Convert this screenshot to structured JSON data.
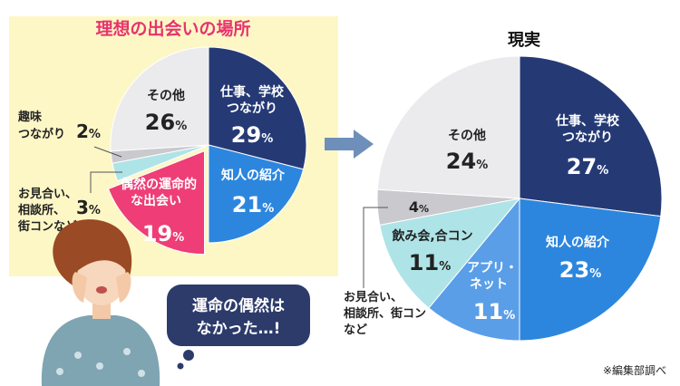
{
  "chart_data": [
    {
      "type": "pie",
      "title": "理想の出会いの場所",
      "categories": [
        "仕事、学校つながり",
        "知人の紹介",
        "偶然の運命的な出会い",
        "お見合い、相談所、街コンなど",
        "趣味つながり",
        "その他"
      ],
      "values": [
        29,
        21,
        19,
        3,
        2,
        26
      ],
      "unit": "%",
      "colors": [
        "#253a75",
        "#2d86dd",
        "#ee3d77",
        "#aee4e7",
        "#c9c9ce",
        "#ebebee"
      ]
    },
    {
      "type": "pie",
      "title": "現実",
      "categories": [
        "仕事、学校つながり",
        "知人の紹介",
        "アプリ・ネット",
        "飲み会,合コン",
        "お見合い、相談所、街コンなど",
        "その他"
      ],
      "values": [
        27,
        23,
        11,
        11,
        4,
        24
      ],
      "unit": "%",
      "colors": [
        "#253a75",
        "#2d86dd",
        "#5a9ee8",
        "#aee4e7",
        "#c9c9ce",
        "#ebebee"
      ]
    }
  ],
  "labels": {
    "ideal": [
      {
        "lines": [
          "仕事、学校",
          "つながり"
        ],
        "value": "29"
      },
      {
        "lines": [
          "知人の紹介"
        ],
        "value": "21"
      },
      {
        "lines": [
          "偶然の運命的",
          "な出会い"
        ],
        "value": "19"
      },
      {
        "lines": [
          "お見合い、",
          "相談所、",
          "街コンなど"
        ],
        "value": "3"
      },
      {
        "lines": [
          "趣味",
          "つながり"
        ],
        "value": "2"
      },
      {
        "lines": [
          "その他"
        ],
        "value": "26"
      }
    ],
    "real": [
      {
        "lines": [
          "仕事、学校",
          "つながり"
        ],
        "value": "27"
      },
      {
        "lines": [
          "知人の紹介"
        ],
        "value": "23"
      },
      {
        "lines": [
          "アプリ・",
          "ネット"
        ],
        "value": "11"
      },
      {
        "lines": [
          "飲み会,合コン"
        ],
        "value": "11"
      },
      {
        "lines": [
          "お見合い、",
          "相談所、街コン",
          "など"
        ],
        "value": "4"
      },
      {
        "lines": [
          "その他"
        ],
        "value": "24"
      }
    ],
    "percent_sign": "%"
  },
  "bubble": {
    "line1": "運命の偶然は",
    "line2": "なかった…!"
  },
  "footnote": "※編集部調べ",
  "colors": {
    "arrow": "#6d8fba",
    "bubble": "#2d3b6b",
    "title_ideal": "#e7336e"
  }
}
